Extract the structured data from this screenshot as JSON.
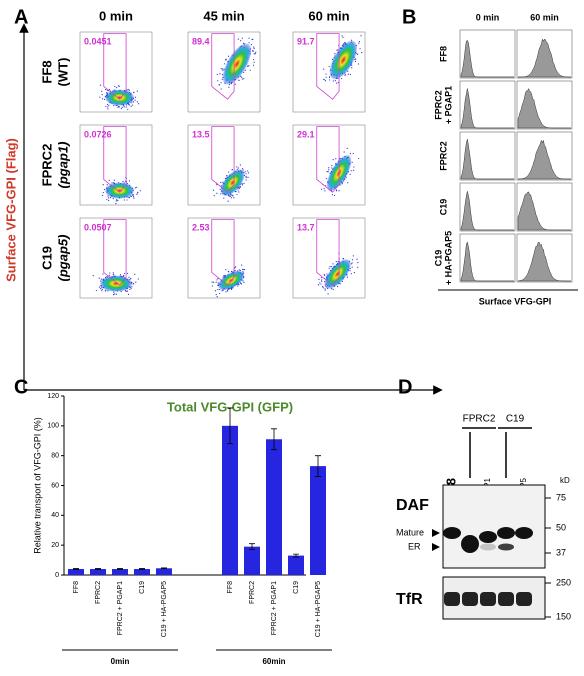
{
  "panel_a": {
    "label": "A",
    "columns": [
      "0 min",
      "45 min",
      "60 min"
    ],
    "rows": [
      {
        "name": "FF8",
        "sub": "(WT)"
      },
      {
        "name": "FPRC2",
        "sub": "(pgap1)"
      },
      {
        "name": "C19",
        "sub": "(pgap5)"
      }
    ],
    "gates": [
      [
        "0.0451",
        "89.4",
        "91.7"
      ],
      [
        "0.0726",
        "13.5",
        "29.1"
      ],
      [
        "0.0507",
        "2.53",
        "13.7"
      ]
    ],
    "y_label": "Surface VFG-GPI (Flag)",
    "x_label": "Total VFG-GPI (GFP)"
  },
  "panel_b": {
    "label": "B",
    "columns": [
      "0 min",
      "60 min"
    ],
    "rows": [
      [
        "FF8"
      ],
      [
        "FPRC2",
        "+ PGAP1"
      ],
      [
        "FPRC2"
      ],
      [
        "C19"
      ],
      [
        "C19",
        "+ HA-PGAP5"
      ]
    ],
    "x_label": "Surface VFG-GPI"
  },
  "chart_data": {
    "type": "bar",
    "panel_label": "C",
    "y_label": "Relative transport of VFG-GPI (%)",
    "categories": [
      "FF8",
      "FPRC2",
      "FPRC2 + PGAP1",
      "C19",
      "C19 + HA-PGAP5",
      "FF8",
      "FPRC2",
      "FPRC2 + PGAP1",
      "C19",
      "C19 + HA-PGAP5"
    ],
    "groups": [
      "0min",
      "60min"
    ],
    "values": [
      4,
      4,
      4,
      4,
      4.5,
      100,
      19,
      91,
      13,
      73
    ],
    "errors": [
      0.3,
      0.3,
      0.3,
      0.3,
      0.3,
      12,
      2,
      7,
      1,
      7
    ],
    "color": "#2626e0",
    "ylim": [
      0,
      120
    ],
    "yticks": [
      0,
      20,
      40,
      60,
      80,
      100,
      120
    ]
  },
  "panel_d": {
    "label": "D",
    "groups": [
      "FPRC2",
      "C19"
    ],
    "lanes": [
      "FF8",
      "+ PGAP1",
      "+ HA-PGAP5"
    ],
    "blot1": "DAF",
    "blot2": "TfR",
    "unit": "kD",
    "bands": [
      "Mature",
      "ER"
    ],
    "markers1": [
      75,
      50,
      37
    ],
    "markers2": [
      250,
      150
    ]
  }
}
